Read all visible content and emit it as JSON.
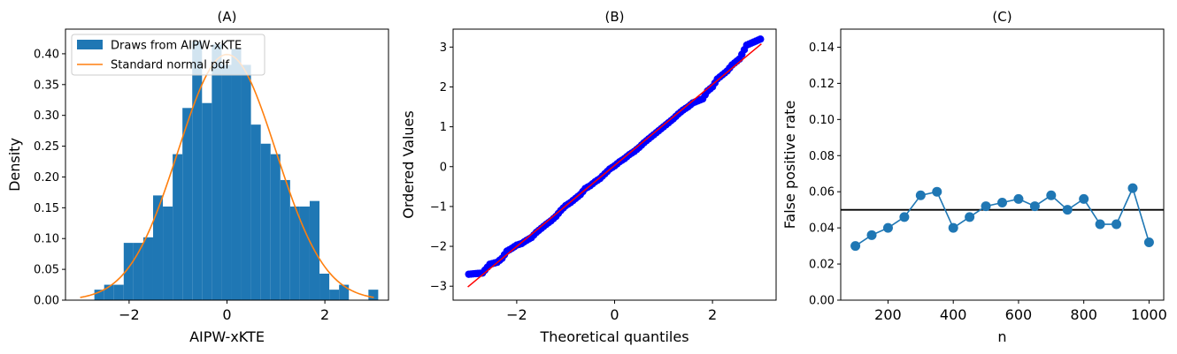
{
  "chart_data": [
    {
      "panel": "A",
      "type": "bar",
      "title": "(A)",
      "xlabel": "AIPW-xKTE",
      "ylabel": "Density",
      "xlim": [
        -3.3,
        3.3
      ],
      "ylim": [
        0,
        0.44
      ],
      "x_ticks": [
        -2,
        0,
        2
      ],
      "x_tick_labels": [
        "−2",
        "0",
        "2"
      ],
      "y_ticks": [
        0,
        0.05,
        0.1,
        0.15,
        0.2,
        0.25,
        0.3,
        0.35,
        0.4
      ],
      "y_tick_labels": [
        "0.00",
        "0.05",
        "0.10",
        "0.15",
        "0.20",
        "0.25",
        "0.30",
        "0.35",
        "0.40"
      ],
      "legend": "upper-left",
      "series": [
        {
          "name": "Draws from AIPW-xKTE",
          "kind": "histogram",
          "color": "#1f77b4",
          "bin_width": 0.2,
          "bin_starts": [
            -2.71,
            -2.51,
            -2.31,
            -2.11,
            -1.91,
            -1.71,
            -1.51,
            -1.31,
            -1.11,
            -0.91,
            -0.71,
            -0.51,
            -0.31,
            -0.11,
            0.09,
            0.29,
            0.49,
            0.69,
            0.89,
            1.09,
            1.29,
            1.49,
            1.69,
            1.89,
            2.09,
            2.29,
            2.49,
            2.69,
            2.89
          ],
          "values": [
            0.017,
            0.025,
            0.025,
            0.093,
            0.093,
            0.102,
            0.17,
            0.152,
            0.237,
            0.312,
            0.42,
            0.32,
            0.415,
            0.382,
            0.408,
            0.382,
            0.285,
            0.254,
            0.237,
            0.195,
            0.152,
            0.152,
            0.161,
            0.043,
            0.017,
            0.025,
            0.0,
            0.0,
            0.017
          ]
        },
        {
          "name": "Standard normal pdf",
          "kind": "line",
          "color": "#ff7f0e",
          "function": "standard normal density",
          "x_range": [
            -3,
            3
          ]
        }
      ]
    },
    {
      "panel": "B",
      "type": "scatter",
      "title": "(B)",
      "xlabel": "Theoretical quantiles",
      "ylabel": "Ordered Values",
      "xlim": [
        -3.3,
        3.3
      ],
      "ylim": [
        -3.35,
        3.45
      ],
      "x_ticks": [
        -2,
        0,
        2
      ],
      "x_tick_labels": [
        "−2",
        "0",
        "2"
      ],
      "y_ticks": [
        -3,
        -2,
        -1,
        0,
        1,
        2,
        3
      ],
      "y_tick_labels": [
        "−3",
        "−2",
        "−1",
        "0",
        "1",
        "2",
        "3"
      ],
      "series": [
        {
          "kind": "points",
          "color": "#0000ff",
          "x": [
            -2.98,
            -2.7,
            -2.55,
            -2.4,
            -2.3,
            -2.2,
            -2.1,
            -2.0,
            -1.9,
            -1.8,
            -1.7,
            -1.6,
            -1.5,
            -1.4,
            -1.3,
            -1.2,
            -1.1,
            -1.0,
            -0.9,
            -0.8,
            -0.7,
            -0.6,
            -0.5,
            -0.4,
            -0.3,
            -0.2,
            -0.1,
            0.0,
            0.1,
            0.2,
            0.3,
            0.4,
            0.5,
            0.6,
            0.7,
            0.8,
            0.9,
            1.0,
            1.1,
            1.2,
            1.3,
            1.4,
            1.5,
            1.6,
            1.7,
            1.8,
            1.9,
            2.0,
            2.1,
            2.2,
            2.3,
            2.4,
            2.55,
            2.7,
            2.98
          ],
          "y": [
            -2.7,
            -2.67,
            -2.45,
            -2.4,
            -2.3,
            -2.12,
            -2.05,
            -1.97,
            -1.93,
            -1.85,
            -1.78,
            -1.65,
            -1.55,
            -1.45,
            -1.36,
            -1.25,
            -1.1,
            -0.98,
            -0.9,
            -0.8,
            -0.7,
            -0.55,
            -0.48,
            -0.38,
            -0.3,
            -0.18,
            -0.06,
            0.02,
            0.12,
            0.2,
            0.3,
            0.38,
            0.48,
            0.6,
            0.7,
            0.8,
            0.9,
            1.0,
            1.1,
            1.2,
            1.32,
            1.42,
            1.5,
            1.6,
            1.65,
            1.7,
            1.9,
            2.0,
            2.2,
            2.3,
            2.4,
            2.55,
            2.7,
            3.05,
            3.2
          ]
        },
        {
          "kind": "line",
          "color": "#ff0000",
          "x": [
            -3,
            3
          ],
          "y": [
            -3.02,
            3.08
          ]
        }
      ]
    },
    {
      "panel": "C",
      "type": "line",
      "title": "(C)",
      "xlabel": "n",
      "ylabel": "False positive rate",
      "xlim": [
        55,
        1045
      ],
      "ylim": [
        0,
        0.15
      ],
      "x_ticks": [
        200,
        400,
        600,
        800,
        1000
      ],
      "x_tick_labels": [
        "200",
        "400",
        "600",
        "800",
        "1000"
      ],
      "y_ticks": [
        0,
        0.02,
        0.04,
        0.06,
        0.08,
        0.1,
        0.12,
        0.14
      ],
      "y_tick_labels": [
        "0.00",
        "0.02",
        "0.04",
        "0.06",
        "0.08",
        "0.10",
        "0.12",
        "0.14"
      ],
      "reference_line": {
        "y": 0.05,
        "color": "#000000"
      },
      "series": [
        {
          "color": "#1f77b4",
          "x": [
            100,
            150,
            200,
            250,
            300,
            350,
            400,
            450,
            500,
            550,
            600,
            650,
            700,
            750,
            800,
            850,
            900,
            950,
            1000
          ],
          "y": [
            0.03,
            0.036,
            0.04,
            0.046,
            0.058,
            0.06,
            0.04,
            0.046,
            0.052,
            0.054,
            0.056,
            0.052,
            0.058,
            0.05,
            0.056,
            0.042,
            0.042,
            0.062,
            0.032
          ]
        }
      ]
    }
  ]
}
